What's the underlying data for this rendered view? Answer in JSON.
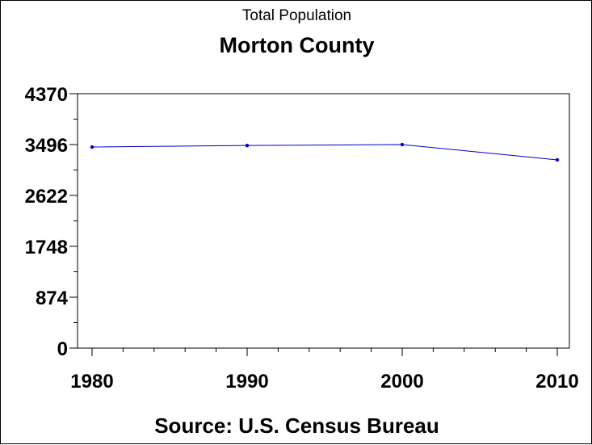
{
  "chart_data": {
    "type": "line",
    "subtitle": "Total Population",
    "title": "Morton County",
    "source": "Source: U.S. Census Bureau",
    "xlabel": "",
    "ylabel": "",
    "x": [
      1980,
      1990,
      2000,
      2010
    ],
    "x_ticks": [
      "1980",
      "1990",
      "2000",
      "2010"
    ],
    "y_ticks": [
      "0",
      "874",
      "1748",
      "2622",
      "3496",
      "4370"
    ],
    "ylim": [
      0,
      4370
    ],
    "xlim": [
      1980,
      2010
    ],
    "series": [
      {
        "values": [
          3454,
          3480,
          3496,
          3233
        ],
        "color": "#0000cc"
      }
    ],
    "grid": false
  }
}
